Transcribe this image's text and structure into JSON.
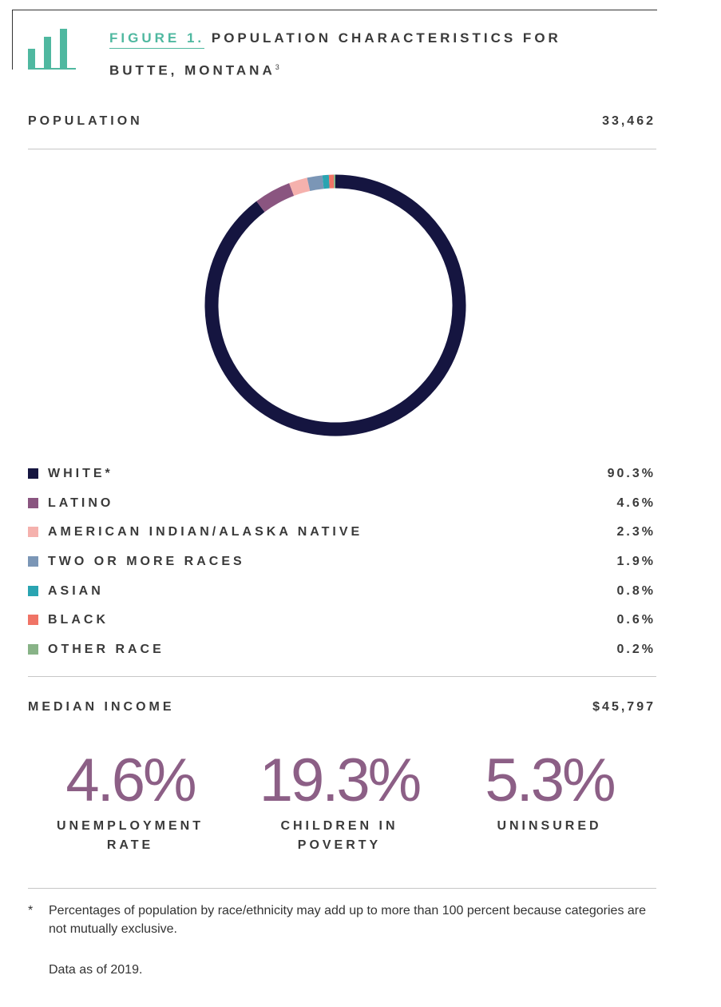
{
  "header": {
    "figure_label": "FIGURE 1.",
    "title_line1": "POPULATION CHARACTERISTICS FOR",
    "title_line2": "BUTTE, MONTANA",
    "superscript": "3",
    "icon": "bar-chart-icon",
    "accent_color": "#4fb8a0"
  },
  "population": {
    "label": "POPULATION",
    "value": "33,462"
  },
  "chart_data": {
    "type": "pie",
    "variant": "donut",
    "title": "",
    "categories": [
      "WHITE*",
      "LATINO",
      "AMERICAN INDIAN/ALASKA NATIVE",
      "TWO OR MORE RACES",
      "ASIAN",
      "BLACK",
      "OTHER RACE"
    ],
    "values": [
      90.3,
      4.6,
      2.3,
      1.9,
      0.8,
      0.6,
      0.2
    ],
    "value_labels": [
      "90.3%",
      "4.6%",
      "2.3%",
      "1.9%",
      "0.8%",
      "0.6%",
      "0.2%"
    ],
    "colors": [
      "#151540",
      "#8a5580",
      "#f5b1ad",
      "#7b96b6",
      "#2aa4b1",
      "#f07466",
      "#88b387"
    ],
    "legend_position": "bottom",
    "start": "top",
    "direction": "clockwise"
  },
  "median_income": {
    "label": "MEDIAN INCOME",
    "value": "$45,797"
  },
  "stats": [
    {
      "value": "4.6%",
      "label_line1": "UNEMPLOYMENT",
      "label_line2": "RATE"
    },
    {
      "value": "19.3%",
      "label_line1": "CHILDREN IN",
      "label_line2": "POVERTY"
    },
    {
      "value": "5.3%",
      "label_line1": "UNINSURED",
      "label_line2": ""
    }
  ],
  "stat_color": "#8c5f86",
  "footnote": {
    "marker": "*",
    "text": "Percentages of population by race/ethnicity may add up to more than 100 percent because categories are not mutually exclusive."
  },
  "data_as_of": "Data as of 2019."
}
